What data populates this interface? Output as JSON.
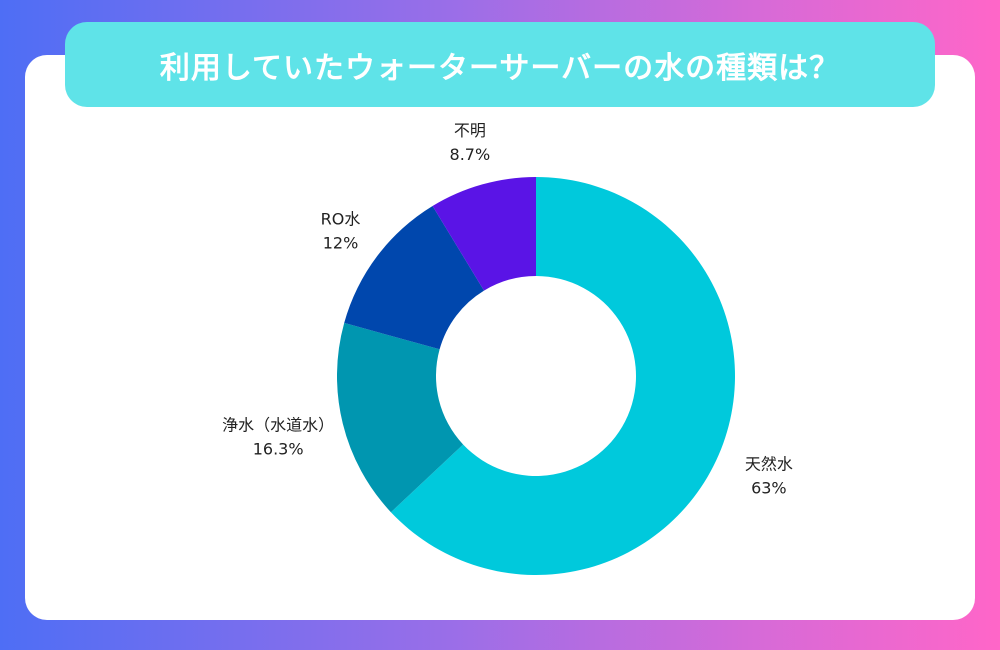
{
  "title": "利用していたウォーターサーバーの水の種類は？",
  "chart_data": {
    "type": "pie",
    "donut": true,
    "title": "利用していたウォーターサーバーの水の種類は？",
    "slices": [
      {
        "label": "天然水",
        "value": 63,
        "value_label": "63%",
        "color": "#00c9dc"
      },
      {
        "label": "浄水（水道水）",
        "value": 16.3,
        "value_label": "16.3%",
        "color": "#0096b0"
      },
      {
        "label": "RO水",
        "value": 12,
        "value_label": "12%",
        "color": "#0047ad"
      },
      {
        "label": "不明",
        "value": 8.7,
        "value_label": "8.7%",
        "color": "#5a14e6"
      }
    ],
    "start": "top",
    "direction": "clockwise",
    "legend": "none"
  }
}
